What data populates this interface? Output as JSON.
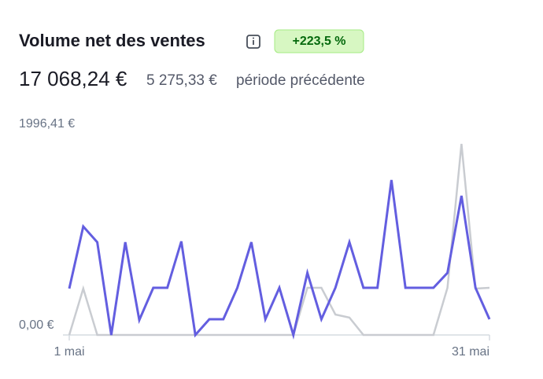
{
  "chart_data": {
    "type": "line",
    "title": "Volume net des ventes",
    "change_badge": "+223,5 %",
    "total": "17 068,24 €",
    "previous_total": "5 275,33 €",
    "previous_label": "période précédente",
    "categories": [
      "1 mai",
      null,
      null,
      null,
      null,
      null,
      null,
      null,
      null,
      null,
      null,
      null,
      null,
      null,
      null,
      null,
      null,
      null,
      null,
      null,
      null,
      null,
      null,
      null,
      null,
      null,
      null,
      null,
      null,
      null,
      "31 mai"
    ],
    "series": [
      {
        "color": "#c9ccd1",
        "values": [
          0,
          460,
          0,
          0,
          0,
          0,
          0,
          0,
          0,
          0,
          0,
          0,
          0,
          0,
          0,
          0,
          0,
          468,
          468,
          203,
          172,
          0,
          0,
          0,
          0,
          0,
          0,
          468,
          1895,
          460,
          468
        ]
      },
      {
        "color": "#635ee0",
        "values": [
          460,
          1076,
          920,
          0,
          920,
          148,
          468,
          468,
          928,
          0,
          156,
          156,
          468,
          920,
          156,
          468,
          0,
          616,
          156,
          468,
          920,
          468,
          468,
          1536,
          468,
          468,
          468,
          616,
          1380,
          468,
          156
        ]
      }
    ],
    "ylim": [
      0,
      1996.41
    ],
    "yticks": [
      {
        "value": 0,
        "label": "0,00 €"
      },
      {
        "value": 1996.41,
        "label": "1996,41 €"
      }
    ]
  }
}
